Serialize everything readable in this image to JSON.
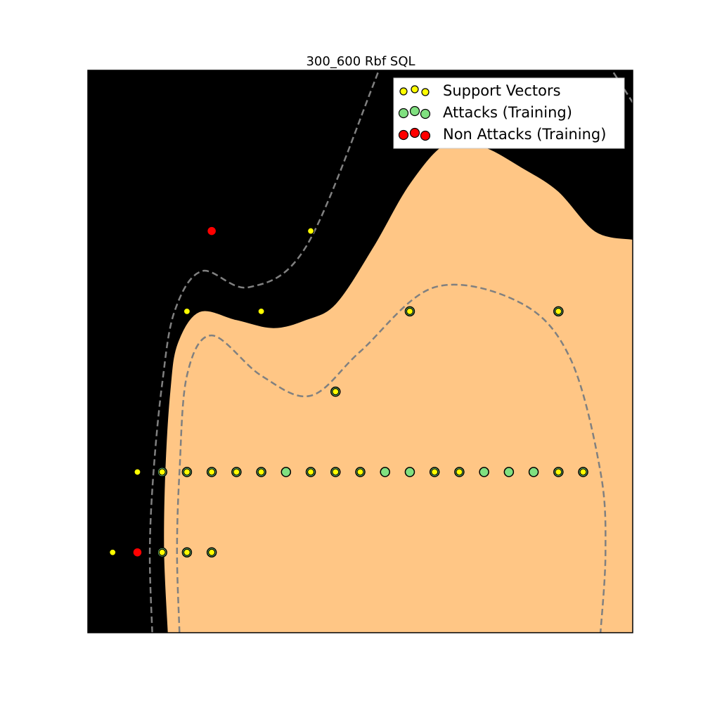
{
  "chart_data": {
    "type": "scatter",
    "title": "300_600 Rbf SQL",
    "xlabel": "",
    "ylabel": "",
    "xlim": [
      -1,
      21
    ],
    "ylim": [
      -1,
      6
    ],
    "grid": false,
    "legend_placement": "top-right",
    "background_color": "#000000",
    "decision_region_color": "#ffc685",
    "margin_line_color": "#808080",
    "legend": [
      {
        "label": "Support Vectors",
        "marker": "small-yellow",
        "color": "#ffff00"
      },
      {
        "label": "Attacks (Training)",
        "marker": "green",
        "color": "#80e080"
      },
      {
        "label": "Non Attacks (Training)",
        "marker": "red",
        "color": "#ff0000"
      }
    ],
    "series": [
      {
        "name": "Attacks (Training)",
        "color": "#80e080",
        "points": [
          [
            2,
            1
          ],
          [
            3,
            1
          ],
          [
            4,
            1
          ],
          [
            5,
            1
          ],
          [
            6,
            1
          ],
          [
            7,
            1
          ],
          [
            8,
            1
          ],
          [
            9,
            1
          ],
          [
            10,
            1
          ],
          [
            11,
            1
          ],
          [
            12,
            1
          ],
          [
            13,
            1
          ],
          [
            14,
            1
          ],
          [
            15,
            1
          ],
          [
            16,
            1
          ],
          [
            17,
            1
          ],
          [
            18,
            1
          ],
          [
            19,
            1
          ],
          [
            2,
            0
          ],
          [
            3,
            0
          ],
          [
            4,
            0
          ],
          [
            9,
            2
          ],
          [
            12,
            3
          ],
          [
            18,
            3
          ]
        ]
      },
      {
        "name": "Non Attacks (Training)",
        "color": "#ff0000",
        "points": [
          [
            1,
            0
          ],
          [
            4,
            4
          ]
        ]
      },
      {
        "name": "Support Vectors",
        "color": "#ffff00",
        "points": [
          [
            0,
            0
          ],
          [
            1,
            1
          ],
          [
            3,
            3
          ],
          [
            6,
            3
          ],
          [
            8,
            4
          ],
          [
            2,
            1
          ],
          [
            3,
            1
          ],
          [
            4,
            1
          ],
          [
            5,
            1
          ],
          [
            6,
            1
          ],
          [
            8,
            1
          ],
          [
            9,
            1
          ],
          [
            10,
            1
          ],
          [
            13,
            1
          ],
          [
            14,
            1
          ],
          [
            18,
            1
          ],
          [
            19,
            1
          ],
          [
            2,
            0
          ],
          [
            3,
            0
          ],
          [
            4,
            0
          ],
          [
            9,
            2
          ],
          [
            12,
            3
          ],
          [
            18,
            3
          ]
        ]
      }
    ],
    "decision_boundary": [
      [
        2.2,
        -1
      ],
      [
        2.05,
        0
      ],
      [
        2.1,
        1
      ],
      [
        2.3,
        2
      ],
      [
        2.6,
        2.6
      ],
      [
        3.5,
        3.0
      ],
      [
        5,
        2.9
      ],
      [
        6.5,
        2.8
      ],
      [
        7.8,
        2.9
      ],
      [
        9,
        3.1
      ],
      [
        10.5,
        3.8
      ],
      [
        12,
        4.6
      ],
      [
        13.5,
        5.1
      ],
      [
        15,
        5.05
      ],
      [
        16.5,
        4.8
      ],
      [
        18,
        4.5
      ],
      [
        19.5,
        4.0
      ],
      [
        21,
        3.9
      ]
    ],
    "margin_lines": [
      {
        "name": "upper margin",
        "points": [
          [
            1.6,
            -1
          ],
          [
            1.5,
            0
          ],
          [
            1.65,
            1
          ],
          [
            2.0,
            2.1
          ],
          [
            2.5,
            3.0
          ],
          [
            3.6,
            3.5
          ],
          [
            5.5,
            3.3
          ],
          [
            7.8,
            3.8
          ],
          [
            10.5,
            5.8
          ],
          [
            11.5,
            6.7
          ],
          [
            13,
            8
          ],
          [
            16,
            7.8
          ],
          [
            19.5,
            6.3
          ],
          [
            21,
            5.6
          ]
        ]
      },
      {
        "name": "lower margin",
        "points": [
          [
            2.7,
            -1
          ],
          [
            2.6,
            0
          ],
          [
            2.7,
            1
          ],
          [
            3,
            2.2
          ],
          [
            4,
            2.7
          ],
          [
            6,
            2.2
          ],
          [
            8,
            1.95
          ],
          [
            10,
            2.5
          ],
          [
            13,
            3.3
          ],
          [
            16.5,
            3.1
          ],
          [
            18.5,
            2.4
          ],
          [
            19.7,
            1.0
          ],
          [
            19.9,
            0
          ],
          [
            19.7,
            -1
          ]
        ]
      }
    ]
  }
}
